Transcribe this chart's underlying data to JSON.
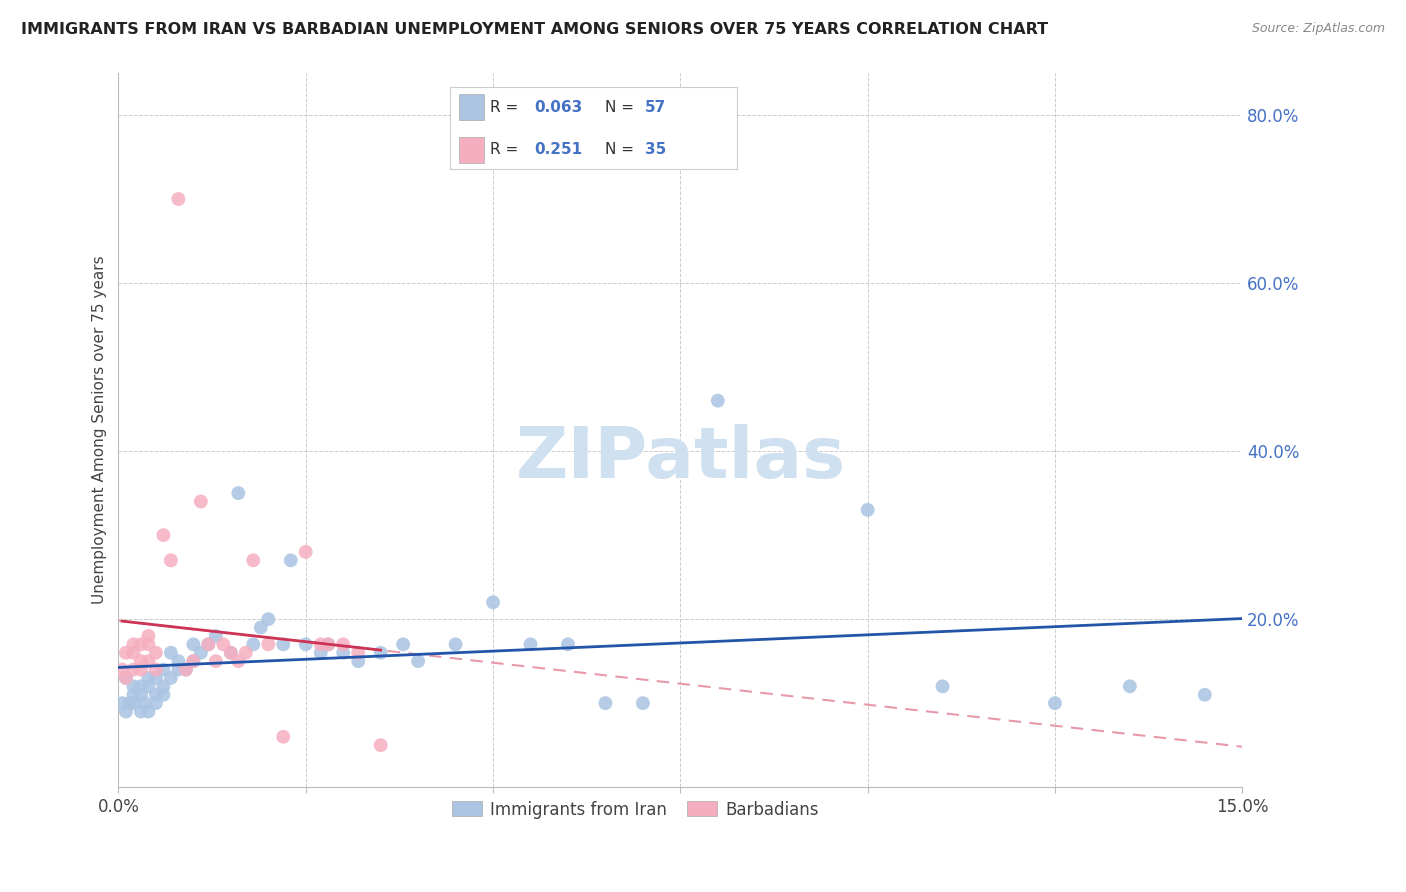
{
  "title": "IMMIGRANTS FROM IRAN VS BARBADIAN UNEMPLOYMENT AMONG SENIORS OVER 75 YEARS CORRELATION CHART",
  "source": "Source: ZipAtlas.com",
  "ylabel": "Unemployment Among Seniors over 75 years",
  "xlim": [
    0.0,
    0.15
  ],
  "ylim": [
    0.0,
    0.85
  ],
  "legend_iran_R": "0.063",
  "legend_iran_N": "57",
  "legend_barb_R": "0.251",
  "legend_barb_N": "35",
  "iran_color": "#aac4e2",
  "barb_color": "#f5aec0",
  "iran_line_color": "#2255aa",
  "barb_line_color": "#cc3355",
  "barb_dash_color": "#e899aa",
  "watermark_color": "#cfe0f0",
  "iran_x": [
    0.0005,
    0.001,
    0.001,
    0.0015,
    0.002,
    0.002,
    0.002,
    0.003,
    0.003,
    0.003,
    0.0035,
    0.004,
    0.004,
    0.004,
    0.005,
    0.005,
    0.005,
    0.006,
    0.006,
    0.006,
    0.007,
    0.007,
    0.008,
    0.008,
    0.009,
    0.01,
    0.01,
    0.011,
    0.012,
    0.013,
    0.015,
    0.016,
    0.018,
    0.019,
    0.02,
    0.022,
    0.023,
    0.025,
    0.027,
    0.028,
    0.03,
    0.032,
    0.035,
    0.038,
    0.04,
    0.045,
    0.05,
    0.055,
    0.06,
    0.065,
    0.07,
    0.08,
    0.1,
    0.11,
    0.125,
    0.135,
    0.145
  ],
  "iran_y": [
    0.1,
    0.09,
    0.13,
    0.1,
    0.1,
    0.12,
    0.11,
    0.09,
    0.11,
    0.12,
    0.1,
    0.09,
    0.12,
    0.13,
    0.1,
    0.11,
    0.13,
    0.12,
    0.14,
    0.11,
    0.13,
    0.16,
    0.14,
    0.15,
    0.14,
    0.15,
    0.17,
    0.16,
    0.17,
    0.18,
    0.16,
    0.35,
    0.17,
    0.19,
    0.2,
    0.17,
    0.27,
    0.17,
    0.16,
    0.17,
    0.16,
    0.15,
    0.16,
    0.17,
    0.15,
    0.17,
    0.22,
    0.17,
    0.17,
    0.1,
    0.1,
    0.46,
    0.33,
    0.12,
    0.1,
    0.12,
    0.11
  ],
  "barb_x": [
    0.0005,
    0.001,
    0.001,
    0.002,
    0.002,
    0.002,
    0.003,
    0.003,
    0.003,
    0.004,
    0.004,
    0.004,
    0.005,
    0.005,
    0.006,
    0.007,
    0.008,
    0.009,
    0.01,
    0.011,
    0.012,
    0.013,
    0.014,
    0.015,
    0.016,
    0.017,
    0.018,
    0.02,
    0.022,
    0.025,
    0.027,
    0.028,
    0.03,
    0.032,
    0.035
  ],
  "barb_y": [
    0.14,
    0.13,
    0.16,
    0.14,
    0.16,
    0.17,
    0.14,
    0.15,
    0.17,
    0.15,
    0.17,
    0.18,
    0.14,
    0.16,
    0.3,
    0.27,
    0.7,
    0.14,
    0.15,
    0.34,
    0.17,
    0.15,
    0.17,
    0.16,
    0.15,
    0.16,
    0.27,
    0.17,
    0.06,
    0.28,
    0.17,
    0.17,
    0.17,
    0.16,
    0.05
  ]
}
